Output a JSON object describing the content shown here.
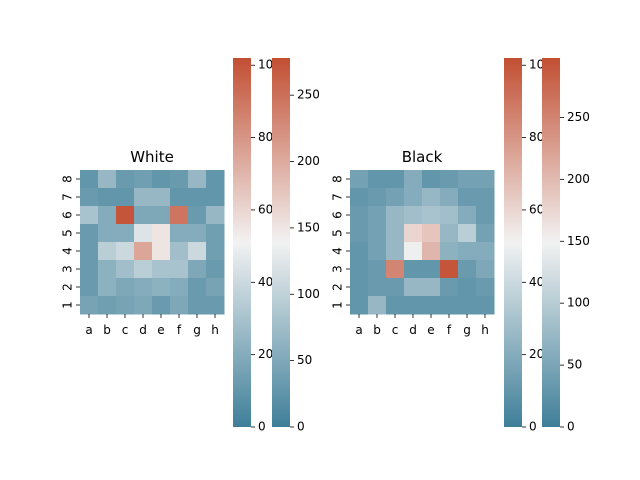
{
  "chart_data": [
    {
      "type": "heatmap",
      "title": "White",
      "x_labels": [
        "a",
        "b",
        "c",
        "d",
        "e",
        "f",
        "g",
        "h"
      ],
      "y_labels": [
        "8",
        "7",
        "6",
        "5",
        "4",
        "3",
        "2",
        "1"
      ],
      "values": [
        [
          10,
          25,
          12,
          14,
          10,
          12,
          25,
          10
        ],
        [
          12,
          10,
          10,
          25,
          25,
          10,
          10,
          10
        ],
        [
          30,
          20,
          100,
          18,
          18,
          90,
          12,
          25
        ],
        [
          12,
          20,
          20,
          45,
          55,
          20,
          20,
          14
        ],
        [
          12,
          35,
          40,
          75,
          55,
          28,
          40,
          14
        ],
        [
          12,
          22,
          28,
          35,
          30,
          30,
          18,
          12
        ],
        [
          12,
          22,
          18,
          20,
          22,
          20,
          12,
          16
        ],
        [
          16,
          14,
          16,
          18,
          12,
          18,
          12,
          12
        ]
      ],
      "colorbars": [
        {
          "ticks": [
            0,
            20,
            40,
            60,
            80,
            100
          ],
          "range": [
            0,
            102
          ]
        },
        {
          "ticks": [
            0,
            50,
            100,
            150,
            200,
            250
          ],
          "range": [
            0,
            278
          ]
        }
      ]
    },
    {
      "type": "heatmap",
      "title": "Black",
      "x_labels": [
        "a",
        "b",
        "c",
        "d",
        "e",
        "f",
        "g",
        "h"
      ],
      "y_labels": [
        "8",
        "7",
        "6",
        "5",
        "4",
        "3",
        "2",
        "1"
      ],
      "values": [
        [
          15,
          10,
          10,
          20,
          10,
          12,
          15,
          15
        ],
        [
          10,
          12,
          15,
          20,
          25,
          20,
          12,
          12
        ],
        [
          12,
          15,
          25,
          28,
          30,
          28,
          20,
          12
        ],
        [
          12,
          15,
          25,
          60,
          65,
          25,
          35,
          15
        ],
        [
          10,
          15,
          25,
          50,
          70,
          22,
          20,
          20
        ],
        [
          10,
          12,
          85,
          10,
          10,
          100,
          12,
          18
        ],
        [
          10,
          12,
          12,
          25,
          25,
          12,
          10,
          12
        ],
        [
          10,
          25,
          10,
          10,
          10,
          10,
          10,
          10
        ]
      ],
      "colorbars": [
        {
          "ticks": [
            0,
            20,
            40,
            60,
            80,
            100
          ],
          "range": [
            0,
            102
          ]
        },
        {
          "ticks": [
            0,
            50,
            100,
            150,
            200,
            250
          ],
          "range": [
            0,
            298
          ]
        }
      ]
    }
  ],
  "colors": {
    "low": "#3f7f99",
    "mid": "#f2f2f2",
    "high": "#c24f33"
  }
}
